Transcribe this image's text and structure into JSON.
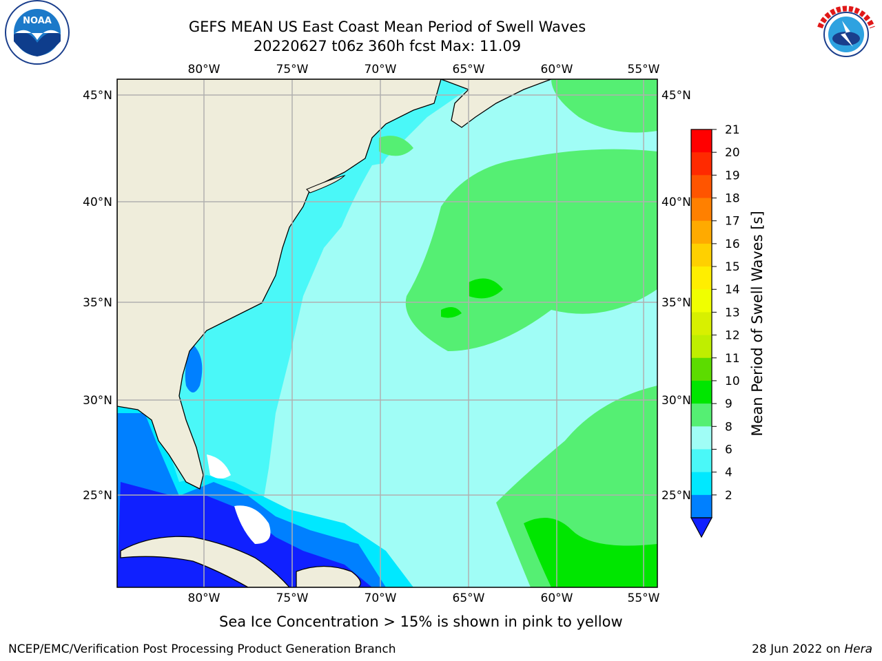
{
  "title_line1": "GEFS MEAN US East Coast Mean Period of Swell Waves",
  "title_line2": "20220627 t06z 360h fcst   Max: 11.09",
  "subtitle": "Sea Ice Concentration > 15% is shown in pink to yellow",
  "footer_left": "NCEP/EMC/Verification Post Processing Product Generation Branch",
  "footer_right_date": "28 Jun 2022 on ",
  "footer_right_host": "Hera",
  "logos": {
    "left": "noaa-logo",
    "right": "nws-logo"
  },
  "map": {
    "lon_labels": [
      "80°W",
      "75°W",
      "70°W",
      "65°W",
      "60°W",
      "55°W"
    ],
    "lat_labels": [
      "45°N",
      "40°N",
      "35°N",
      "30°N",
      "25°N"
    ],
    "land_color": "#efeddb",
    "grid_color": "#b0b0b0"
  },
  "colorbar": {
    "label": "Mean Period of Swell Waves [s]",
    "ticks": [
      "21",
      "20",
      "19",
      "18",
      "17",
      "16",
      "15",
      "14",
      "13",
      "12",
      "11",
      "10",
      "9",
      "8",
      "6",
      "4",
      "2"
    ],
    "colors": [
      "#ff0000",
      "#ff2a00",
      "#ff5500",
      "#ff8000",
      "#ffaa00",
      "#ffd000",
      "#ffee00",
      "#f0ff00",
      "#d8f000",
      "#bfee00",
      "#5cdc00",
      "#00e600",
      "#55ef73",
      "#a0fdf6",
      "#4af8f8",
      "#00e8ff",
      "#0080ff"
    ],
    "extend_color": "#1020ff"
  }
}
